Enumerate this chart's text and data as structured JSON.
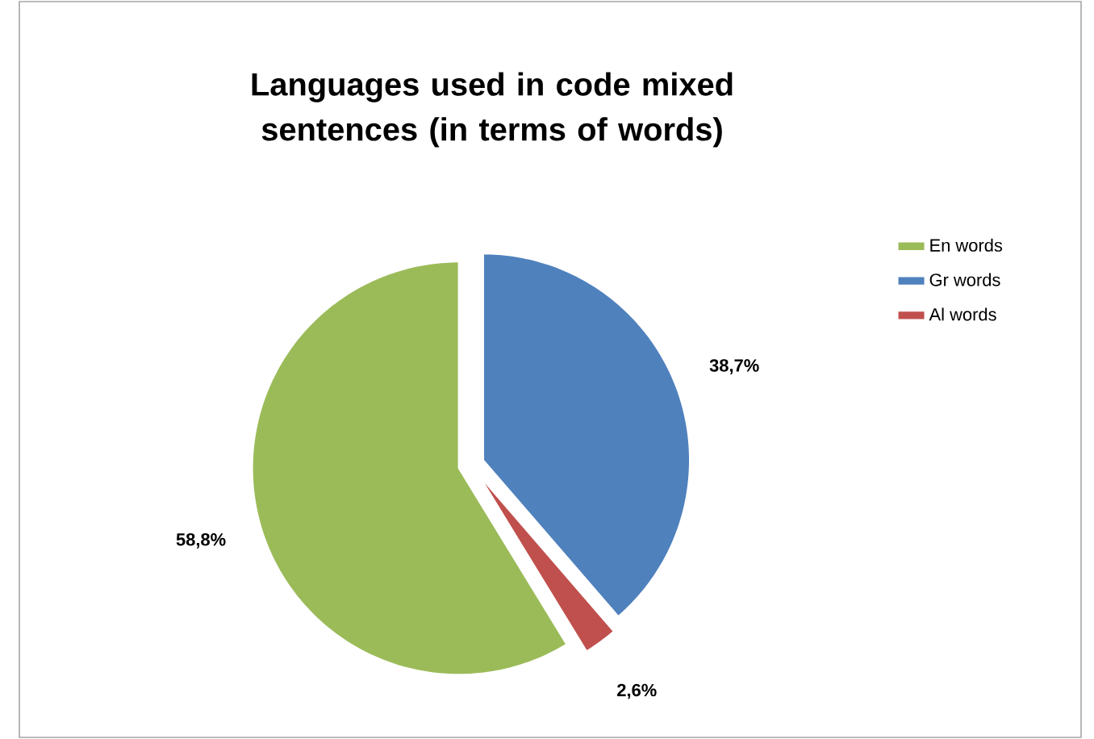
{
  "chart_data": {
    "type": "pie",
    "title": "Languages used in code mixed sentences (in terms of words)",
    "categories": [
      "En words",
      "Gr words",
      "Al words"
    ],
    "values": [
      58.8,
      38.7,
      2.6
    ],
    "colors": [
      "#9bbb59",
      "#4f81bd",
      "#c0504d"
    ],
    "value_labels": [
      "58,8%",
      "38,7%",
      "2,6%"
    ],
    "legend": "right"
  }
}
